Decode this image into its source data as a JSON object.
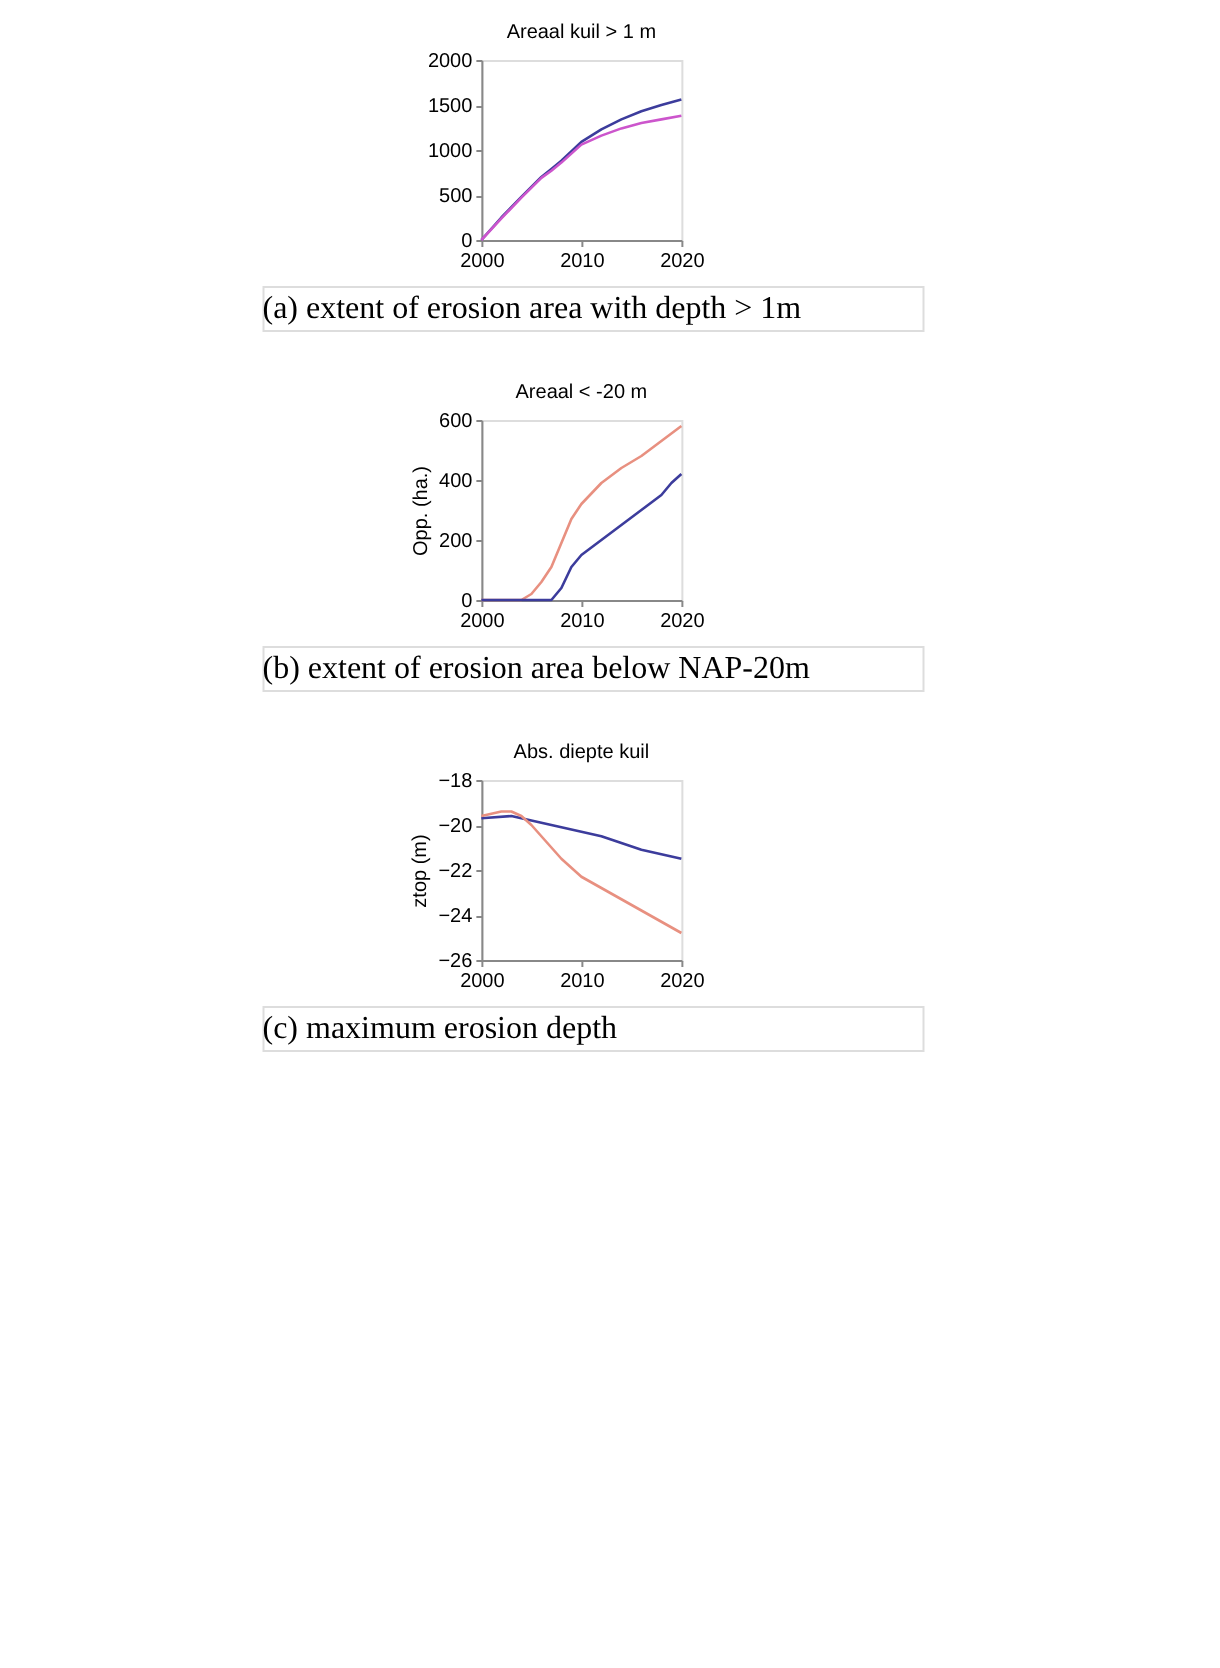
{
  "chart_data": [
    {
      "type": "line",
      "title": "Areaal kuil > 1 m",
      "xlim": [
        2000,
        2020
      ],
      "xticks": [
        2000,
        2010,
        2020
      ],
      "ylim": [
        0,
        2000
      ],
      "yticks": [
        0,
        500,
        1000,
        1500,
        2000
      ],
      "annotations": [
        "(a) extent of erosion area with depth > 1m"
      ],
      "series": [
        {
          "color": "#3c3c9c",
          "x": [
            2000,
            2002,
            2004,
            2006,
            2007,
            2008,
            2010,
            2012,
            2014,
            2016,
            2018,
            2020
          ],
          "values": [
            0,
            250,
            480,
            700,
            790,
            880,
            1090,
            1230,
            1340,
            1430,
            1500,
            1560
          ]
        },
        {
          "color": "#cc55cc",
          "x": [
            2000,
            2002,
            2004,
            2006,
            2007,
            2008,
            2010,
            2012,
            2014,
            2016,
            2018,
            2020
          ],
          "values": [
            0,
            240,
            470,
            690,
            770,
            860,
            1060,
            1160,
            1240,
            1300,
            1340,
            1380
          ]
        }
      ]
    },
    {
      "type": "line",
      "title": "Areaal < -20 m",
      "ylabel": "Opp. (ha.)",
      "xlim": [
        2000,
        2020
      ],
      "xticks": [
        2000,
        2010,
        2020
      ],
      "ylim": [
        0,
        600
      ],
      "yticks": [
        0,
        200,
        400,
        600
      ],
      "annotations": [
        "(b) extent of erosion area below NAP-20m"
      ],
      "series": [
        {
          "color": "#e89080",
          "x": [
            2000,
            2004,
            2005,
            2006,
            2007,
            2008,
            2009,
            2010,
            2012,
            2014,
            2016,
            2018,
            2020
          ],
          "values": [
            0,
            0,
            20,
            60,
            110,
            190,
            270,
            320,
            390,
            440,
            480,
            530,
            580
          ]
        },
        {
          "color": "#3c3c9c",
          "x": [
            2000,
            2007,
            2008,
            2009,
            2010,
            2012,
            2014,
            2016,
            2018,
            2019,
            2020
          ],
          "values": [
            0,
            0,
            40,
            110,
            150,
            200,
            250,
            300,
            350,
            390,
            420
          ]
        }
      ]
    },
    {
      "type": "line",
      "title": "Abs. diepte kuil",
      "ylabel": "ztop (m)",
      "xlim": [
        2000,
        2020
      ],
      "xticks": [
        2000,
        2010,
        2020
      ],
      "ylim": [
        -26,
        -18
      ],
      "yticks": [
        -26,
        -24,
        -22,
        -20,
        -18
      ],
      "annotations": [
        "(c) maximum erosion depth"
      ],
      "series": [
        {
          "color": "#3c3c9c",
          "x": [
            2000,
            2003,
            2005,
            2007,
            2010,
            2012,
            2014,
            2016,
            2018,
            2020
          ],
          "values": [
            -19.7,
            -19.6,
            -19.8,
            -20.0,
            -20.3,
            -20.5,
            -20.8,
            -21.1,
            -21.3,
            -21.5
          ]
        },
        {
          "color": "#e89080",
          "x": [
            2000,
            2002,
            2003,
            2004,
            2005,
            2006,
            2008,
            2010,
            2012,
            2014,
            2016,
            2018,
            2020
          ],
          "values": [
            -19.6,
            -19.4,
            -19.4,
            -19.6,
            -20.0,
            -20.5,
            -21.5,
            -22.3,
            -22.8,
            -23.3,
            -23.8,
            -24.3,
            -24.8
          ]
        }
      ]
    }
  ]
}
